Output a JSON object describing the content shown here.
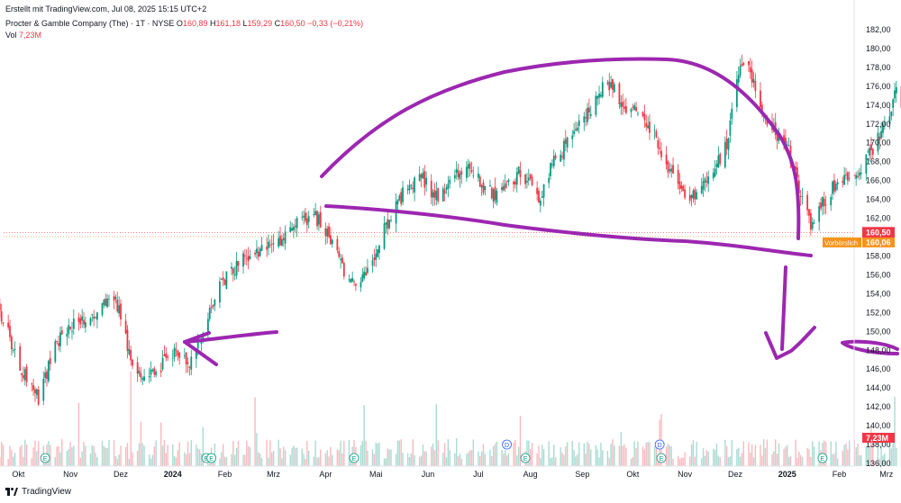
{
  "header": {
    "created": "Erstellt mit TradingView.com, Jul 08, 2025 15:15 UTC+2",
    "symbol": "Procter & Gamble Company (The) · 1T · NYSE",
    "o_label": "O",
    "o_value": "160,89",
    "h_label": "H",
    "h_value": "161,18",
    "l_label": "L",
    "l_value": "159,29",
    "c_label": "C",
    "c_value": "160,50",
    "change": "−0,33 (−0,21%)",
    "vol_label": "Vol",
    "vol_value": "7,23M"
  },
  "logo_text": "TradingView",
  "colors": {
    "up": "#089981",
    "down": "#f23645",
    "annotation": "#9c27b0",
    "premarket": "#f7931a"
  },
  "price_tags": {
    "last": "160,50",
    "premarket_label": "Vorbörslich",
    "premarket": "160,06",
    "volume": "7,23M"
  },
  "chart_data": {
    "type": "candlestick",
    "ylim": [
      135,
      183
    ],
    "y_ticks": [
      "182,00",
      "180,00",
      "178,00",
      "176,00",
      "174,00",
      "172,00",
      "170,00",
      "168,00",
      "166,00",
      "164,00",
      "162,00",
      "160,00",
      "158,00",
      "156,00",
      "154,00",
      "152,00",
      "150,00",
      "148,00",
      "146,00",
      "144,00",
      "142,00",
      "140,00",
      "138,00",
      "136,00"
    ],
    "x_ticks": [
      "Sep",
      "Okt",
      "Nov",
      "Dez",
      "2024",
      "Feb",
      "Mrz",
      "Apr",
      "Mai",
      "Jun",
      "Jul",
      "Aug",
      "Sep",
      "Okt",
      "Nov",
      "Dez",
      "2025",
      "Feb",
      "Mrz",
      "Apr",
      "Mai",
      "Jun",
      "Jul",
      "Aug",
      "Sep"
    ],
    "bold_ticks": [
      "2024",
      "2025"
    ],
    "close_anchors": [
      [
        "2023-08-31",
        151.5
      ],
      [
        "2023-09-12",
        155.5
      ],
      [
        "2023-09-22",
        151
      ],
      [
        "2023-10-04",
        145.5
      ],
      [
        "2023-10-13",
        143
      ],
      [
        "2023-10-24",
        149
      ],
      [
        "2023-11-03",
        151
      ],
      [
        "2023-11-16",
        152
      ],
      [
        "2023-11-28",
        153.5
      ],
      [
        "2023-12-06",
        148
      ],
      [
        "2023-12-14",
        144.5
      ],
      [
        "2023-12-20",
        145.5
      ],
      [
        "2024-01-02",
        147.5
      ],
      [
        "2024-01-10",
        146.5
      ],
      [
        "2024-01-17",
        148.5
      ],
      [
        "2024-01-24",
        153
      ],
      [
        "2024-02-02",
        156
      ],
      [
        "2024-02-15",
        158
      ],
      [
        "2024-02-29",
        159
      ],
      [
        "2024-03-12",
        161
      ],
      [
        "2024-03-25",
        162.5
      ],
      [
        "2024-04-03",
        160
      ],
      [
        "2024-04-10",
        157
      ],
      [
        "2024-04-18",
        155
      ],
      [
        "2024-04-26",
        156.5
      ],
      [
        "2024-05-06",
        161
      ],
      [
        "2024-05-17",
        164.5
      ],
      [
        "2024-05-28",
        166.5
      ],
      [
        "2024-06-07",
        164
      ],
      [
        "2024-06-17",
        166.5
      ],
      [
        "2024-06-27",
        167.5
      ],
      [
        "2024-07-05",
        165
      ],
      [
        "2024-07-15",
        164.5
      ],
      [
        "2024-07-26",
        167
      ],
      [
        "2024-08-02",
        165.5
      ],
      [
        "2024-08-06",
        164
      ],
      [
        "2024-08-15",
        168
      ],
      [
        "2024-08-27",
        171
      ],
      [
        "2024-09-05",
        173.5
      ],
      [
        "2024-09-12",
        175.5
      ],
      [
        "2024-09-18",
        176.5
      ],
      [
        "2024-09-25",
        173.5
      ],
      [
        "2024-10-03",
        174
      ],
      [
        "2024-10-14",
        171
      ],
      [
        "2024-10-22",
        167
      ],
      [
        "2024-10-31",
        165
      ],
      [
        "2024-11-07",
        164
      ],
      [
        "2024-11-15",
        166
      ],
      [
        "2024-11-26",
        170
      ],
      [
        "2024-12-03",
        177
      ],
      [
        "2024-12-06",
        179
      ],
      [
        "2024-12-12",
        176
      ],
      [
        "2024-12-20",
        172
      ],
      [
        "2025-01-02",
        169
      ],
      [
        "2025-01-10",
        164
      ],
      [
        "2025-01-15",
        161
      ],
      [
        "2025-01-22",
        163.5
      ],
      [
        "2025-01-31",
        166
      ],
      [
        "2025-02-10",
        166
      ],
      [
        "2025-02-20",
        169
      ],
      [
        "2025-03-04",
        173
      ],
      [
        "2025-03-07",
        176
      ],
      [
        "2025-03-13",
        171
      ],
      [
        "2025-03-21",
        168
      ],
      [
        "2025-03-28",
        167
      ],
      [
        "2025-04-04",
        162
      ],
      [
        "2025-04-10",
        166
      ],
      [
        "2025-04-17",
        169
      ],
      [
        "2025-04-25",
        166
      ],
      [
        "2025-05-05",
        162
      ],
      [
        "2025-05-14",
        160
      ],
      [
        "2025-05-22",
        162
      ],
      [
        "2025-05-30",
        166
      ],
      [
        "2025-06-05",
        168
      ],
      [
        "2025-06-12",
        166
      ],
      [
        "2025-06-20",
        162
      ],
      [
        "2025-06-26",
        159.5
      ],
      [
        "2025-07-07",
        160.5
      ]
    ],
    "events": [
      {
        "date": "2023-10-17",
        "label": "E"
      },
      {
        "date": "2024-01-21",
        "label": "E"
      },
      {
        "date": "2024-01-24",
        "label": "E"
      },
      {
        "date": "2024-04-18",
        "label": "E"
      },
      {
        "date": "2024-07-18",
        "label": "D"
      },
      {
        "date": "2024-07-29",
        "label": "E"
      },
      {
        "date": "2024-10-17",
        "label": "D"
      },
      {
        "date": "2024-10-18",
        "label": "E"
      },
      {
        "date": "2025-01-22",
        "label": "E"
      },
      {
        "date": "2025-04-18",
        "label": "D"
      },
      {
        "date": "2025-04-22",
        "label": "E"
      },
      {
        "date": "2025-07-29",
        "label": "E"
      }
    ]
  }
}
